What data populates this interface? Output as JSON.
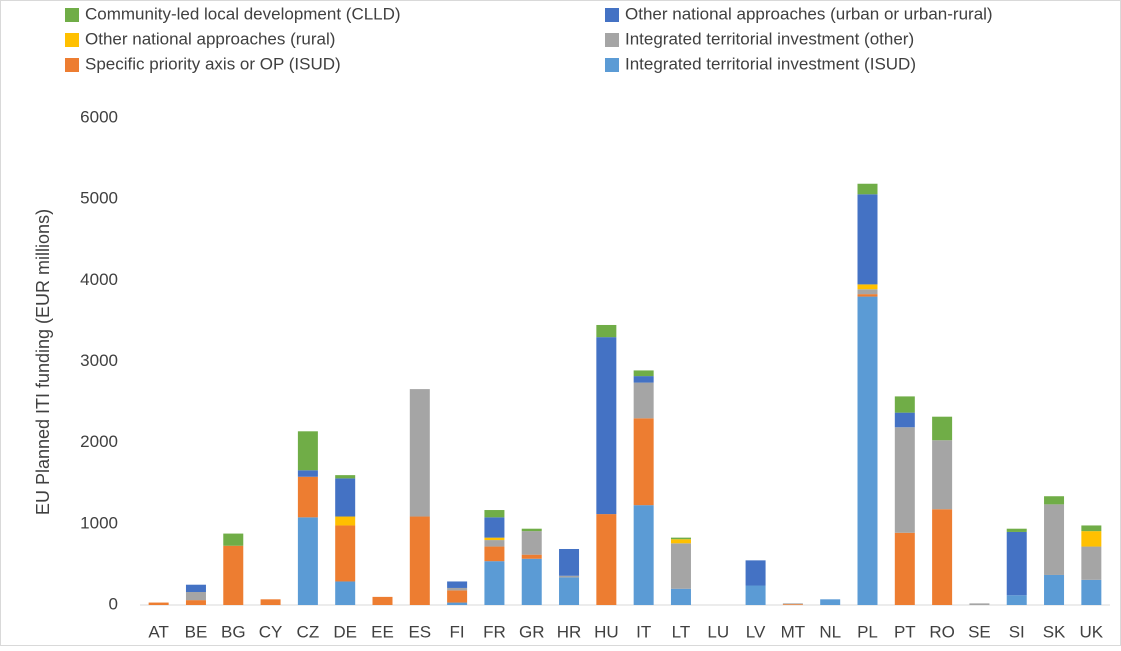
{
  "chart_data": {
    "type": "stacked_bar",
    "y_label": "EU Planned ITI funding (EUR millions)",
    "categories": [
      "AT",
      "BE",
      "BG",
      "CY",
      "CZ",
      "DE",
      "EE",
      "ES",
      "FI",
      "FR",
      "GR",
      "HR",
      "HU",
      "IT",
      "LT",
      "LU",
      "LV",
      "MT",
      "NL",
      "PL",
      "PT",
      "RO",
      "SE",
      "SI",
      "SK",
      "UK"
    ],
    "series": [
      {
        "name": "Community-led local development (CLLD)",
        "color": "#70ad47",
        "values": [
          0,
          0,
          150,
          0,
          480,
          40,
          0,
          0,
          0,
          90,
          30,
          0,
          150,
          70,
          20,
          0,
          0,
          0,
          0,
          130,
          200,
          290,
          0,
          40,
          100,
          70
        ]
      },
      {
        "name": "Other national approaches (urban or urban-rural)",
        "color": "#4472c4",
        "values": [
          0,
          90,
          0,
          0,
          80,
          470,
          0,
          0,
          80,
          250,
          0,
          330,
          2180,
          80,
          0,
          0,
          310,
          0,
          0,
          1110,
          180,
          0,
          0,
          780,
          0,
          0
        ]
      },
      {
        "name": "Other national approaches (rural)",
        "color": "#ffc000",
        "values": [
          0,
          0,
          0,
          0,
          0,
          110,
          0,
          0,
          0,
          30,
          0,
          0,
          0,
          0,
          50,
          0,
          0,
          0,
          0,
          60,
          0,
          0,
          0,
          0,
          0,
          190
        ]
      },
      {
        "name": "Integrated territorial investment (other)",
        "color": "#a5a5a5",
        "values": [
          0,
          100,
          0,
          0,
          0,
          0,
          0,
          1570,
          30,
          80,
          290,
          20,
          0,
          440,
          560,
          0,
          0,
          10,
          0,
          60,
          1300,
          850,
          20,
          0,
          870,
          410
        ]
      },
      {
        "name": "Specific priority axis or OP (ISUD)",
        "color": "#ed7d31",
        "values": [
          30,
          60,
          730,
          70,
          500,
          690,
          100,
          1090,
          150,
          180,
          50,
          0,
          1120,
          1070,
          0,
          0,
          0,
          10,
          0,
          30,
          890,
          1180,
          0,
          0,
          0,
          0
        ]
      },
      {
        "name": "Integrated territorial investment (ISUD)",
        "color": "#5b9bd5",
        "values": [
          0,
          0,
          0,
          0,
          1080,
          290,
          0,
          0,
          30,
          540,
          570,
          340,
          0,
          1230,
          200,
          0,
          240,
          0,
          70,
          3800,
          0,
          0,
          0,
          120,
          370,
          310
        ]
      }
    ],
    "ylim": [
      0,
      6000
    ],
    "yticks": [
      0,
      1000,
      2000,
      3000,
      4000,
      5000,
      6000
    ],
    "grid": false
  }
}
